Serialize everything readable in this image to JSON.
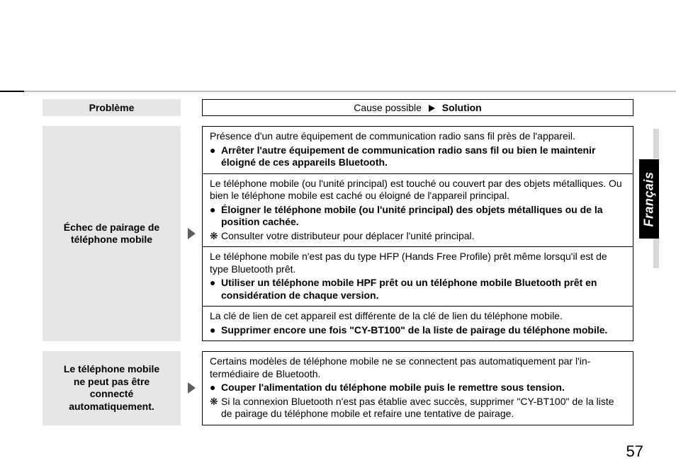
{
  "language_tab": "Français",
  "page_number": "57",
  "headers": {
    "problem": "Problème",
    "cause_left": "Cause possible",
    "cause_right": "Solution"
  },
  "sections": [
    {
      "problem_lines": [
        "Échec de pairage de",
        "téléphone mobile"
      ],
      "blocks": [
        {
          "cause": "Présence d'un autre équipement de communication radio sans fil près de l'appareil.",
          "solution": "Arrêter l'autre équipement de communication radio sans fil ou bien le maintenir éloigné de ces appareils Bluetooth.",
          "note": null
        },
        {
          "cause": "Le téléphone mobile (ou l'unité principal) est touché ou couvert par des objets métalliques. Ou bien le téléphone mobile est caché ou éloigné de l'appareil principal.",
          "solution": "Éloigner le téléphone mobile (ou l'unité principal) des objets métalliques ou de la position cachée.",
          "note": "Consulter votre distributeur pour déplacer l'unité principal."
        },
        {
          "cause": "Le téléphone mobile n'est pas du type HFP (Hands Free Profile) prêt même lorsqu'il est de type Bluetooth prêt.",
          "solution": "Utiliser un téléphone mobile HPF prêt ou un téléphone mobile Bluetooth prêt en considération de chaque version.",
          "note": null
        },
        {
          "cause": "La clé de lien de cet appareil est différente de la clé de lien du téléphone mobile.",
          "solution": "Supprimer encore une fois \"CY-BT100\" de la liste de pairage du téléphone mobile.",
          "note": null
        }
      ]
    },
    {
      "problem_lines": [
        "Le téléphone mobile",
        "ne peut pas être",
        "connecté",
        "automatiquement."
      ],
      "blocks": [
        {
          "cause": "Certains modèles de téléphone mobile ne se connectent pas automatiquement par l'in­termédiaire de Bluetooth.",
          "solution": "Couper l'alimentation du téléphone mobile puis le remettre sous tension.",
          "note": "Si la connexion Bluetooth n'est pas établie avec succès, supprimer \"CY-BT100\" de la liste de pairage du téléphone mobile et refaire une tentative de pairage."
        }
      ]
    }
  ]
}
